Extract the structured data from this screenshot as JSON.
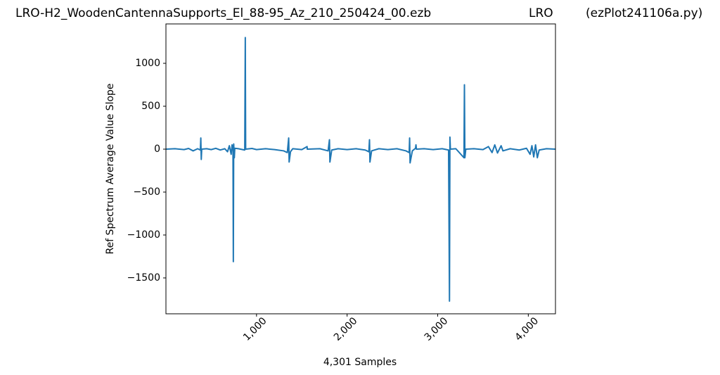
{
  "chart_data": {
    "type": "line",
    "titles": [
      "LRO-H2_WoodenCantennaSupports_El_88-95_Az_210_250424_00.ezb",
      "LRO",
      "(ezPlot241106a.py)"
    ],
    "xlabel": "4,301 Samples",
    "ylabel": "Ref Spectrum Average Value Slope",
    "x": [
      0,
      100,
      200,
      250,
      300,
      350,
      380,
      385,
      390,
      395,
      450,
      500,
      550,
      600,
      650,
      680,
      700,
      720,
      730,
      740,
      744,
      748,
      755,
      760,
      800,
      870,
      876,
      880,
      950,
      1000,
      1100,
      1200,
      1300,
      1340,
      1355,
      1360,
      1375,
      1400,
      1500,
      1558,
      1560,
      1700,
      1790,
      1805,
      1810,
      1830,
      1900,
      2000,
      2100,
      2200,
      2240,
      2247,
      2252,
      2270,
      2350,
      2450,
      2550,
      2650,
      2685,
      2690,
      2695,
      2720,
      2755,
      2760,
      2765,
      2850,
      2950,
      3050,
      3120,
      3130,
      3135,
      3140,
      3200,
      3290,
      3295,
      3300,
      3310,
      3400,
      3500,
      3560,
      3600,
      3630,
      3660,
      3700,
      3720,
      3800,
      3900,
      3980,
      4020,
      4040,
      4060,
      4080,
      4100,
      4120,
      4200,
      4300
    ],
    "series": [
      {
        "name": "slope",
        "color": "#1f77b4",
        "values": [
          0,
          5,
          -5,
          8,
          -20,
          5,
          -10,
          130,
          -120,
          0,
          5,
          -5,
          10,
          -10,
          5,
          -30,
          40,
          -60,
          50,
          20,
          -1310,
          60,
          -100,
          10,
          5,
          -10,
          1300,
          0,
          8,
          -5,
          5,
          -5,
          -20,
          -40,
          130,
          -150,
          -30,
          5,
          -5,
          30,
          0,
          5,
          -20,
          110,
          -150,
          -10,
          5,
          -5,
          5,
          -10,
          -30,
          110,
          -150,
          -20,
          5,
          -5,
          5,
          -20,
          -40,
          130,
          -160,
          -20,
          10,
          50,
          0,
          5,
          -5,
          5,
          -10,
          -1770,
          140,
          0,
          5,
          -100,
          750,
          -100,
          0,
          5,
          -5,
          30,
          -40,
          50,
          -45,
          40,
          -20,
          5,
          -10,
          10,
          -60,
          40,
          -90,
          50,
          -100,
          -10,
          5,
          0
        ]
      }
    ],
    "xlim": [
      0,
      4300
    ],
    "ylim": [
      -1918,
      1459
    ],
    "xticks": [
      {
        "value": 1000,
        "label": "1,000"
      },
      {
        "value": 2000,
        "label": "2,000"
      },
      {
        "value": 3000,
        "label": "3,000"
      },
      {
        "value": 4000,
        "label": "4,000"
      }
    ],
    "yticks": [
      {
        "value": -1500,
        "label": "−1500"
      },
      {
        "value": -1000,
        "label": "−1000"
      },
      {
        "value": -500,
        "label": "−500"
      },
      0,
      500,
      1000
    ],
    "grid": false
  }
}
